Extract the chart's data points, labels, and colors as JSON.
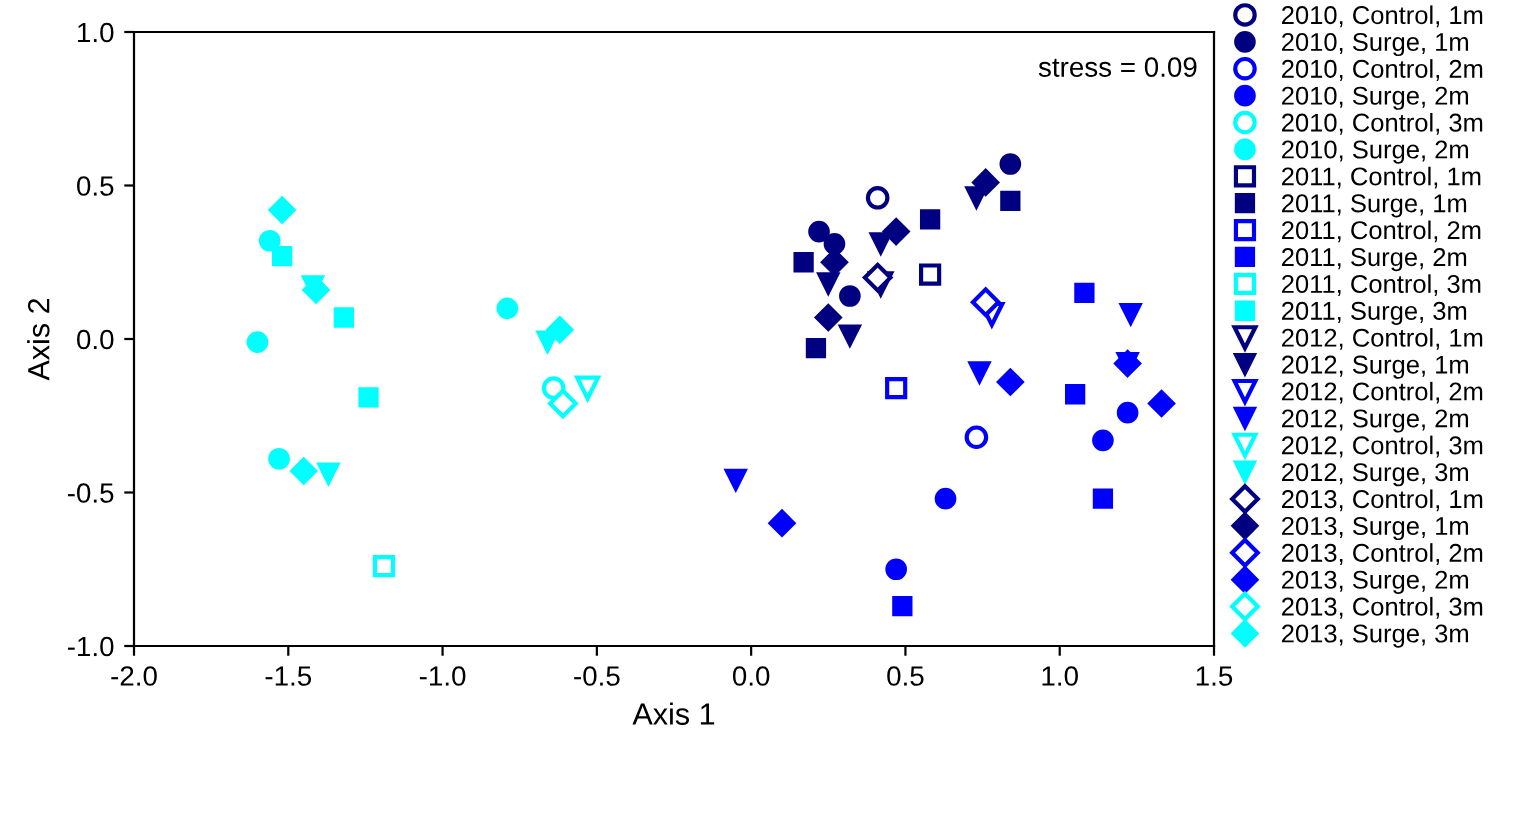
{
  "chart_data": {
    "type": "scatter",
    "xlabel": "Axis 1",
    "ylabel": "Axis 2",
    "xlim": [
      -2.0,
      1.5
    ],
    "ylim": [
      -1.0,
      1.0
    ],
    "xticks": [
      {
        "value": -2.0,
        "label": "-2.0"
      },
      {
        "value": -1.5,
        "label": "-1.5"
      },
      {
        "value": -1.0,
        "label": "-1.0"
      },
      {
        "value": -0.5,
        "label": "-0.5"
      },
      {
        "value": 0.0,
        "label": "0.0"
      },
      {
        "value": 0.5,
        "label": "0.5"
      },
      {
        "value": 1.0,
        "label": "1.0"
      },
      {
        "value": 1.5,
        "label": "1.5"
      }
    ],
    "yticks": [
      {
        "value": -1.0,
        "label": "-1.0"
      },
      {
        "value": -0.5,
        "label": "-0.5"
      },
      {
        "value": 0.0,
        "label": "0.0"
      },
      {
        "value": 0.5,
        "label": "0.5"
      },
      {
        "value": 1.0,
        "label": "1.0"
      }
    ],
    "grid": false,
    "legend": "right",
    "annotations": [
      {
        "text": "stress = 0.09"
      }
    ],
    "series": [
      {
        "name": "2010, Control, 1m",
        "color": "#000080",
        "marker": "circle-open",
        "x": [
          0.41
        ],
        "values": [
          0.46
        ]
      },
      {
        "name": "2010, Surge, 1m",
        "color": "#000080",
        "marker": "circle",
        "x": [
          0.84,
          0.22,
          0.27,
          0.32
        ],
        "values": [
          0.57,
          0.35,
          0.31,
          0.14
        ]
      },
      {
        "name": "2010, Control, 2m",
        "color": "#0000ff",
        "marker": "circle-open",
        "x": [
          0.73
        ],
        "values": [
          -0.32
        ]
      },
      {
        "name": "2010, Surge, 2m",
        "color": "#0000ff",
        "marker": "circle",
        "x": [
          0.63,
          0.47,
          1.22,
          1.14
        ],
        "values": [
          -0.52,
          -0.75,
          -0.24,
          -0.33
        ]
      },
      {
        "name": "2010, Control, 3m",
        "color": "#00ffff",
        "marker": "circle-open",
        "x": [
          -0.64
        ],
        "values": [
          -0.16
        ]
      },
      {
        "name": "2010, Surge, 2m",
        "color": "#00ffff",
        "marker": "circle",
        "x": [
          -1.56,
          -1.6,
          -1.53,
          -0.79
        ],
        "values": [
          0.32,
          -0.01,
          -0.39,
          0.1
        ]
      },
      {
        "name": "2011, Control, 1m",
        "color": "#000080",
        "marker": "square-open",
        "x": [
          0.58
        ],
        "values": [
          0.21
        ]
      },
      {
        "name": "2011, Surge, 1m",
        "color": "#000080",
        "marker": "square",
        "x": [
          0.17,
          0.58,
          0.84,
          0.21
        ],
        "values": [
          0.25,
          0.39,
          0.45,
          -0.03
        ]
      },
      {
        "name": "2011, Control, 2m",
        "color": "#0000ff",
        "marker": "square-open",
        "x": [
          0.47
        ],
        "values": [
          -0.16
        ]
      },
      {
        "name": "2011, Surge, 2m",
        "color": "#0000ff",
        "marker": "square",
        "x": [
          0.49,
          1.08,
          1.05,
          1.14
        ],
        "values": [
          -0.87,
          0.15,
          -0.18,
          -0.52
        ]
      },
      {
        "name": "2011, Control, 3m",
        "color": "#00ffff",
        "marker": "square-open",
        "x": [
          -1.19
        ],
        "values": [
          -0.74
        ]
      },
      {
        "name": "2011, Surge, 3m",
        "color": "#00ffff",
        "marker": "square",
        "x": [
          -1.52,
          -1.32,
          -1.24
        ],
        "values": [
          0.27,
          0.07,
          -0.19
        ]
      },
      {
        "name": "2012, Control, 1m",
        "color": "#000080",
        "marker": "triangle-open",
        "x": [
          0.42
        ],
        "values": [
          0.18
        ]
      },
      {
        "name": "2012, Surge, 1m",
        "color": "#000080",
        "marker": "triangle",
        "x": [
          0.73,
          0.42,
          0.25,
          0.32
        ],
        "values": [
          0.46,
          0.31,
          0.18,
          0.01
        ]
      },
      {
        "name": "2012, Control, 2m",
        "color": "#0000ff",
        "marker": "triangle-open",
        "x": [
          0.78
        ],
        "values": [
          0.08
        ]
      },
      {
        "name": "2012, Surge, 2m",
        "color": "#0000ff",
        "marker": "triangle",
        "x": [
          0.74,
          -0.05,
          1.23,
          1.22
        ],
        "values": [
          -0.11,
          -0.46,
          0.08,
          -0.08
        ]
      },
      {
        "name": "2012, Control, 3m",
        "color": "#00ffff",
        "marker": "triangle-open",
        "x": [
          -0.53
        ],
        "values": [
          -0.16
        ]
      },
      {
        "name": "2012, Surge, 3m",
        "color": "#00ffff",
        "marker": "triangle",
        "x": [
          -0.66,
          -1.37,
          -1.42
        ],
        "values": [
          -0.01,
          -0.44,
          0.17
        ]
      },
      {
        "name": "2013, Control, 1m",
        "color": "#000080",
        "marker": "diamond-open",
        "x": [
          0.41
        ],
        "values": [
          0.2
        ]
      },
      {
        "name": "2013, Surge, 1m",
        "color": "#000080",
        "marker": "diamond",
        "x": [
          0.76,
          0.47,
          0.27,
          0.25
        ],
        "values": [
          0.51,
          0.35,
          0.25,
          0.07
        ]
      },
      {
        "name": "2013, Control, 2m",
        "color": "#0000ff",
        "marker": "diamond-open",
        "x": [
          0.76
        ],
        "values": [
          0.12
        ]
      },
      {
        "name": "2013, Surge, 2m",
        "color": "#0000ff",
        "marker": "diamond",
        "x": [
          0.84,
          0.1,
          1.22,
          1.33
        ],
        "values": [
          -0.14,
          -0.6,
          -0.08,
          -0.21
        ]
      },
      {
        "name": "2013, Control, 3m",
        "color": "#00ffff",
        "marker": "diamond-open",
        "x": [
          -0.61
        ],
        "values": [
          -0.21
        ]
      },
      {
        "name": "2013, Surge, 3m",
        "color": "#00ffff",
        "marker": "diamond",
        "x": [
          -1.52,
          -1.41,
          -1.45,
          -0.62
        ],
        "values": [
          0.42,
          0.16,
          -0.43,
          0.03
        ]
      }
    ]
  }
}
